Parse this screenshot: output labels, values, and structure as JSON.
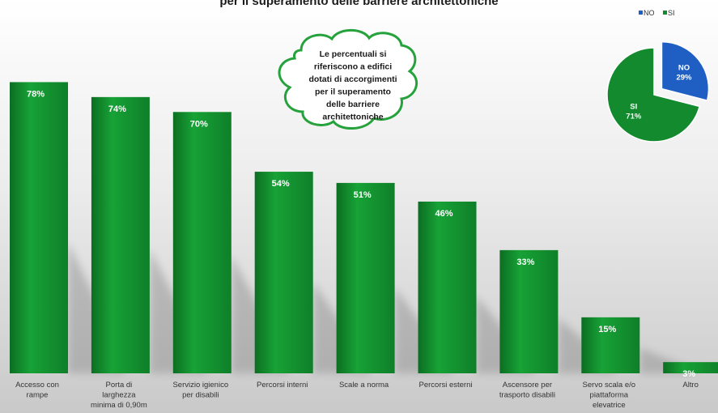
{
  "chart_data": [
    {
      "type": "bar",
      "title": "per il superamento delle barriere architettoniche",
      "categories": [
        "Accesso con rampe",
        "Porta di larghezza minima di 0,90m",
        "Servizio igienico per disabili",
        "Percorsi interni",
        "Scale a norma",
        "Percorsi esterni",
        "Ascensore per trasporto disabili",
        "Servo scala e/o piattaforma elevatrice",
        "Altro"
      ],
      "category_lines": [
        [
          "Accesso con",
          "rampe"
        ],
        [
          "Porta di",
          "larghezza",
          "minima di 0,90m"
        ],
        [
          "Servizio igienico",
          "per disabili"
        ],
        [
          "Percorsi interni"
        ],
        [
          "Scale a norma"
        ],
        [
          "Percorsi esterni"
        ],
        [
          "Ascensore per",
          "trasporto disabili"
        ],
        [
          "Servo scala e/o",
          "piattaforma",
          "elevatrice"
        ],
        [
          "Altro"
        ]
      ],
      "values": [
        78,
        74,
        70,
        54,
        51,
        46,
        33,
        15,
        3
      ],
      "value_labels": [
        "78%",
        "74%",
        "70%",
        "54%",
        "51%",
        "46%",
        "33%",
        "15%",
        "3%"
      ],
      "unit": "%",
      "ylim": [
        0,
        100
      ],
      "grid": false,
      "bar_color": "#138a2e"
    },
    {
      "type": "pie",
      "categories": [
        "NO",
        "SI"
      ],
      "values": [
        29,
        71
      ],
      "value_labels": [
        "29%",
        "71%"
      ],
      "colors": [
        "#1f5fc4",
        "#138a2e"
      ],
      "legend": "top-right"
    }
  ],
  "annotation": {
    "lines": [
      "Le percentuali si",
      "riferiscono a edifici",
      "dotati di accorgimenti",
      "per il superamento",
      "delle barriere",
      "architettoniche"
    ]
  }
}
